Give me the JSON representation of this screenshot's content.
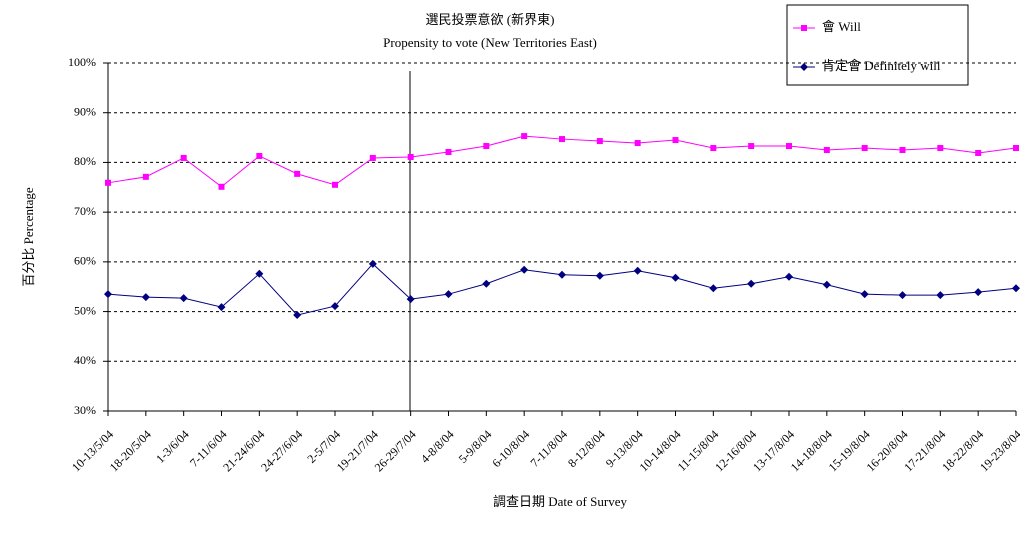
{
  "chart_data": {
    "type": "line",
    "title": "選民投票意欲 (新界東)",
    "subtitle": "Propensity to vote (New Territories East)",
    "y_label": "百分比 Percentage",
    "x_label": "調查日期 Date of Survey",
    "categories": [
      "10-13/5/04",
      "18-20/5/04",
      "1-3/6/04",
      "7-11/6/04",
      "21-24/6/04",
      "24-27/6/04",
      "2-5/7/04",
      "19-21/7/04",
      "26-29/7/04",
      "4-8/8/04",
      "5-9/8/04",
      "6-10/8/04",
      "7-11/8/04",
      "8-12/8/04",
      "9-13/8/04",
      "10-14/8/04",
      "11-15/8/04",
      "12-16/8/04",
      "13-17/8/04",
      "14-18/8/04",
      "15-19/8/04",
      "16-20/8/04",
      "17-21/8/04",
      "18-22/8/04",
      "19-23/8/04"
    ],
    "series": [
      {
        "name": "會 Will",
        "color": "#ff00ff",
        "marker": "square",
        "values": [
          75.9,
          77.1,
          80.9,
          75.1,
          81.3,
          77.7,
          75.5,
          80.9,
          81.1,
          82.1,
          83.3,
          85.3,
          84.7,
          84.3,
          83.9,
          84.5,
          82.9,
          83.3,
          83.3,
          82.5,
          82.9,
          82.5,
          82.9,
          81.9,
          82.9
        ]
      },
      {
        "name": "肯定會 Definitely will",
        "color": "#000080",
        "marker": "diamond",
        "values": [
          53.5,
          52.9,
          52.7,
          50.9,
          57.6,
          49.3,
          51.1,
          59.6,
          52.5,
          53.5,
          55.6,
          58.4,
          57.4,
          57.2,
          58.2,
          56.8,
          54.7,
          55.6,
          57.0,
          55.4,
          53.5,
          53.3,
          53.3,
          53.9,
          54.7
        ]
      }
    ],
    "ylim": [
      30,
      100
    ],
    "yticks": [
      {
        "value": 30,
        "label": "30%"
      },
      {
        "value": 40,
        "label": "40%"
      },
      {
        "value": 50,
        "label": "50%"
      },
      {
        "value": 60,
        "label": "60%"
      },
      {
        "value": 70,
        "label": "70%"
      },
      {
        "value": 80,
        "label": "80%"
      },
      {
        "value": 90,
        "label": "90%"
      },
      {
        "value": 100,
        "label": "100%"
      }
    ],
    "grid": true,
    "legend": "top-right"
  }
}
